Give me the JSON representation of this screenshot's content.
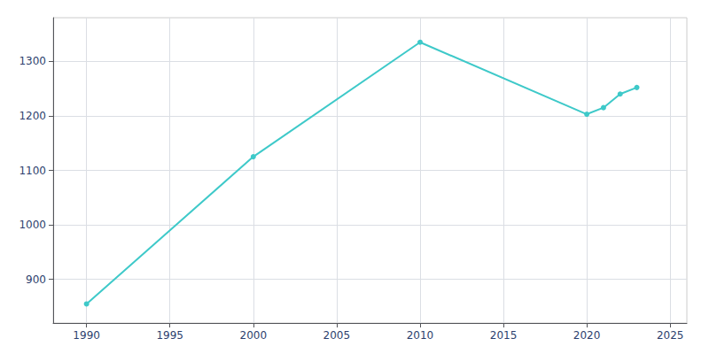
{
  "chart_data": {
    "type": "line",
    "x": [
      1990,
      2000,
      2010,
      2020,
      2021,
      2022,
      2023
    ],
    "values": [
      855,
      1125,
      1335,
      1203,
      1215,
      1240,
      1252
    ],
    "color": "#3ec9c9",
    "marker": "circle",
    "xlim": [
      1988,
      2026
    ],
    "ylim": [
      820,
      1380
    ],
    "xticks": [
      1990,
      1995,
      2000,
      2005,
      2010,
      2015,
      2020,
      2025
    ],
    "yticks": [
      900,
      1000,
      1100,
      1200,
      1300
    ],
    "grid": true
  }
}
